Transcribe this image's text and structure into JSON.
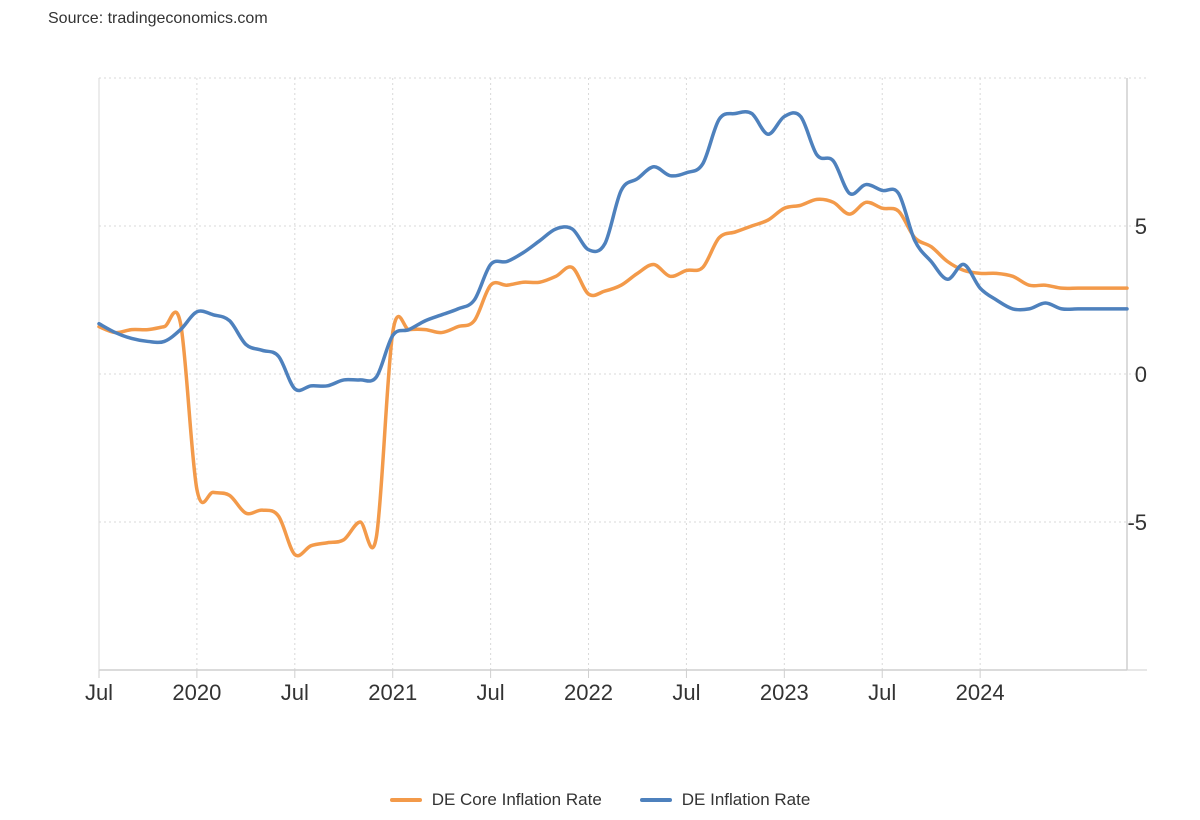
{
  "source_text": "Source: tradingeconomics.com",
  "colors": {
    "core": "#f39a4a",
    "headline": "#4e81bd",
    "grid": "#d9d9d9",
    "axis": "#cfcfcf"
  },
  "chart_data": {
    "type": "line",
    "title": "",
    "xlabel": "",
    "ylabel": "",
    "xlim": [
      "2019-07",
      "2024-10"
    ],
    "ylim": [
      -10,
      10
    ],
    "y_ticks": [
      5,
      0,
      -5
    ],
    "y_tick_labels": [
      "5",
      "0",
      "-5"
    ],
    "x_ticks": [
      "2019-07",
      "2020-01",
      "2020-07",
      "2021-01",
      "2021-07",
      "2022-01",
      "2022-07",
      "2023-01",
      "2023-07",
      "2024-01"
    ],
    "x_tick_labels": [
      "Jul",
      "2020",
      "Jul",
      "2021",
      "Jul",
      "2022",
      "Jul",
      "2023",
      "Jul",
      "2024"
    ],
    "grid": true,
    "legend_position": "bottom-center",
    "series": [
      {
        "name": "DE Core Inflation Rate",
        "color": "#f39a4a",
        "x": [
          "2019-07",
          "2019-08",
          "2019-09",
          "2019-10",
          "2019-11",
          "2019-12",
          "2020-01",
          "2020-02",
          "2020-03",
          "2020-04",
          "2020-05",
          "2020-06",
          "2020-07",
          "2020-08",
          "2020-09",
          "2020-10",
          "2020-11",
          "2020-12",
          "2021-01",
          "2021-02",
          "2021-03",
          "2021-04",
          "2021-05",
          "2021-06",
          "2021-07",
          "2021-08",
          "2021-09",
          "2021-10",
          "2021-11",
          "2021-12",
          "2022-01",
          "2022-02",
          "2022-03",
          "2022-04",
          "2022-05",
          "2022-06",
          "2022-07",
          "2022-08",
          "2022-09",
          "2022-10",
          "2022-11",
          "2022-12",
          "2023-01",
          "2023-02",
          "2023-03",
          "2023-04",
          "2023-05",
          "2023-06",
          "2023-07",
          "2023-08",
          "2023-09",
          "2023-10",
          "2023-11",
          "2023-12",
          "2024-01",
          "2024-02",
          "2024-03",
          "2024-04",
          "2024-05",
          "2024-06",
          "2024-07",
          "2024-08",
          "2024-09",
          "2024-10"
        ],
        "values": [
          1.6,
          1.4,
          1.5,
          1.5,
          1.6,
          1.7,
          -3.9,
          -4.0,
          -4.1,
          -4.7,
          -4.6,
          -4.8,
          -6.1,
          -5.8,
          -5.7,
          -5.6,
          -5.0,
          -5.5,
          1.4,
          1.5,
          1.5,
          1.4,
          1.6,
          1.8,
          3.0,
          3.0,
          3.1,
          3.1,
          3.3,
          3.6,
          2.7,
          2.8,
          3.0,
          3.4,
          3.7,
          3.3,
          3.5,
          3.6,
          4.6,
          4.8,
          5.0,
          5.2,
          5.6,
          5.7,
          5.9,
          5.8,
          5.4,
          5.8,
          5.6,
          5.5,
          4.6,
          4.3,
          3.8,
          3.5,
          3.4,
          3.4,
          3.3,
          3.0,
          3.0,
          2.9,
          2.9,
          2.9,
          2.9,
          2.9
        ]
      },
      {
        "name": "DE Inflation Rate",
        "color": "#4e81bd",
        "x": [
          "2019-07",
          "2019-08",
          "2019-09",
          "2019-10",
          "2019-11",
          "2019-12",
          "2020-01",
          "2020-02",
          "2020-03",
          "2020-04",
          "2020-05",
          "2020-06",
          "2020-07",
          "2020-08",
          "2020-09",
          "2020-10",
          "2020-11",
          "2020-12",
          "2021-01",
          "2021-02",
          "2021-03",
          "2021-04",
          "2021-05",
          "2021-06",
          "2021-07",
          "2021-08",
          "2021-09",
          "2021-10",
          "2021-11",
          "2021-12",
          "2022-01",
          "2022-02",
          "2022-03",
          "2022-04",
          "2022-05",
          "2022-06",
          "2022-07",
          "2022-08",
          "2022-09",
          "2022-10",
          "2022-11",
          "2022-12",
          "2023-01",
          "2023-02",
          "2023-03",
          "2023-04",
          "2023-05",
          "2023-06",
          "2023-07",
          "2023-08",
          "2023-09",
          "2023-10",
          "2023-11",
          "2023-12",
          "2024-01",
          "2024-02",
          "2024-03",
          "2024-04",
          "2024-05",
          "2024-06",
          "2024-07",
          "2024-08",
          "2024-09",
          "2024-10"
        ],
        "values": [
          1.7,
          1.4,
          1.2,
          1.1,
          1.1,
          1.5,
          2.1,
          2.0,
          1.8,
          1.0,
          0.8,
          0.6,
          -0.5,
          -0.4,
          -0.4,
          -0.2,
          -0.2,
          -0.1,
          1.3,
          1.5,
          1.8,
          2.0,
          2.2,
          2.5,
          3.7,
          3.8,
          4.1,
          4.5,
          4.9,
          4.9,
          4.2,
          4.4,
          6.2,
          6.6,
          7.0,
          6.7,
          6.8,
          7.1,
          8.6,
          8.8,
          8.8,
          8.1,
          8.7,
          8.7,
          7.4,
          7.2,
          6.1,
          6.4,
          6.2,
          6.1,
          4.5,
          3.8,
          3.2,
          3.7,
          2.9,
          2.5,
          2.2,
          2.2,
          2.4,
          2.2,
          2.2,
          2.2,
          2.2,
          2.2
        ]
      }
    ]
  }
}
